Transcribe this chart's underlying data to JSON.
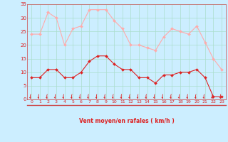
{
  "xlabel": "Vent moyen/en rafales ( km/h )",
  "bg_color": "#cceeff",
  "grid_color": "#aaddcc",
  "hours": [
    0,
    1,
    2,
    3,
    4,
    5,
    6,
    7,
    8,
    9,
    10,
    11,
    12,
    13,
    14,
    15,
    16,
    17,
    18,
    19,
    20,
    21,
    22,
    23
  ],
  "wind_avg": [
    8,
    8,
    11,
    11,
    8,
    8,
    10,
    14,
    16,
    16,
    13,
    11,
    11,
    8,
    8,
    6,
    9,
    9,
    10,
    10,
    11,
    8,
    1,
    1
  ],
  "wind_gust": [
    24,
    24,
    32,
    30,
    20,
    26,
    27,
    33,
    33,
    33,
    29,
    26,
    20,
    20,
    19,
    18,
    23,
    26,
    25,
    24,
    27,
    21,
    15,
    11
  ],
  "avg_color": "#dd2222",
  "gust_color": "#ffaaaa",
  "ylim": [
    0,
    35
  ],
  "yticks": [
    0,
    5,
    10,
    15,
    20,
    25,
    30,
    35
  ],
  "arrow_color": "#dd2222",
  "xlabel_color": "#dd2222",
  "spine_color": "#cc4444",
  "bottom_line_color": "#cc4444"
}
